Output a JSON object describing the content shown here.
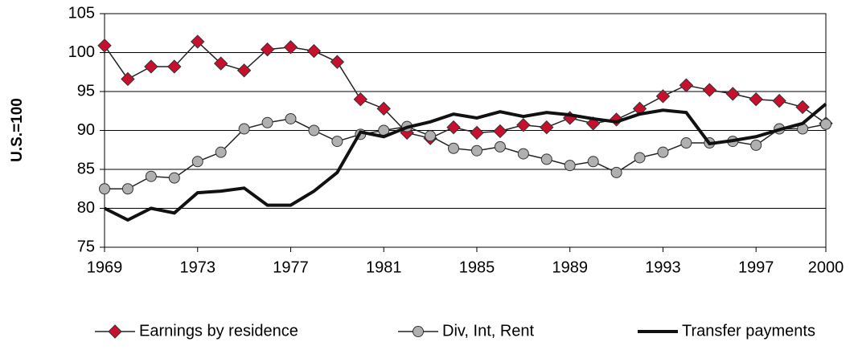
{
  "chart_data": {
    "type": "line",
    "y_label": "U.S.=100",
    "x": [
      1969,
      1970,
      1971,
      1972,
      1973,
      1974,
      1975,
      1976,
      1977,
      1978,
      1979,
      1980,
      1981,
      1982,
      1983,
      1984,
      1985,
      1986,
      1987,
      1988,
      1989,
      1990,
      1991,
      1992,
      1993,
      1994,
      1995,
      1996,
      1997,
      1998,
      1999,
      2000
    ],
    "series": [
      {
        "name": "Earnings by residence",
        "color": "#c8102e",
        "marker": "diamond",
        "values": [
          100.9,
          96.6,
          98.2,
          98.2,
          101.4,
          98.6,
          97.7,
          100.4,
          100.7,
          100.2,
          98.8,
          94.0,
          92.8,
          89.7,
          89.0,
          90.4,
          89.7,
          89.9,
          90.7,
          90.4,
          91.6,
          90.9,
          91.4,
          92.8,
          94.4,
          95.8,
          95.2,
          94.7,
          94.0,
          93.8,
          93.0,
          90.9
        ]
      },
      {
        "name": "Div, Int, Rent",
        "color": "#b0b0b0",
        "marker": "circle",
        "values": [
          82.5,
          82.5,
          84.1,
          83.9,
          86.0,
          87.2,
          90.2,
          91.0,
          91.5,
          90.0,
          88.6,
          89.5,
          90.0,
          90.5,
          89.3,
          87.7,
          87.4,
          87.9,
          87.0,
          86.3,
          85.5,
          86.0,
          84.6,
          86.5,
          87.2,
          88.4,
          88.4,
          88.6,
          88.1,
          90.2,
          90.2,
          90.8
        ]
      },
      {
        "name": "Transfer payments",
        "color": "#111111",
        "marker": "none",
        "values": [
          80.0,
          78.5,
          80.0,
          79.4,
          82.0,
          82.2,
          82.6,
          80.4,
          80.4,
          82.2,
          84.6,
          89.8,
          89.2,
          90.4,
          91.1,
          92.1,
          91.6,
          92.4,
          91.8,
          92.3,
          92.0,
          91.5,
          91.1,
          92.1,
          92.6,
          92.3,
          88.3,
          88.7,
          89.2,
          90.1,
          90.9,
          93.4
        ]
      }
    ],
    "xlim": [
      1969,
      2000
    ],
    "xticks": [
      1969,
      1973,
      1977,
      1981,
      1985,
      1989,
      1993,
      1997,
      2000
    ],
    "ylim": [
      75,
      105
    ],
    "yticks": [
      75,
      80,
      85,
      90,
      95,
      100,
      105
    ],
    "grid": true,
    "legend": "bottom"
  }
}
